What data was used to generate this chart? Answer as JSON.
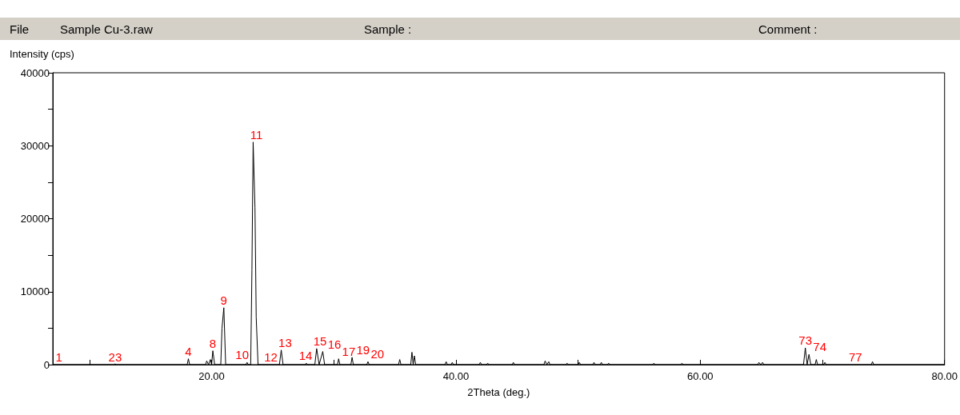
{
  "chart_data": {
    "type": "line",
    "xlabel": "2Theta (deg.)",
    "ylabel": "Intensity (cps)",
    "annotations": [
      "File",
      "Sample Cu-3.raw",
      "Sample :",
      "Comment :",
      {
        "text": "1",
        "x": 7.5,
        "y": 0
      },
      {
        "text": "23",
        "x": 12.1,
        "y": 0
      },
      {
        "text": "4",
        "x": 18.1,
        "y": 800
      },
      {
        "text": "8",
        "x": 20.1,
        "y": 1900
      },
      {
        "text": "9",
        "x": 21.0,
        "y": 7800
      },
      {
        "text": "10",
        "x": 22.5,
        "y": 300
      },
      {
        "text": "11",
        "x": 23.4,
        "y": 30500
      },
      {
        "text": "12",
        "x": 23.9,
        "y": 0
      },
      {
        "text": "13",
        "x": 25.7,
        "y": 2000
      },
      {
        "text": "14",
        "x": 27.7,
        "y": 200
      },
      {
        "text": "15",
        "x": 28.6,
        "y": 2200
      },
      {
        "text": "16",
        "x": 29.1,
        "y": 1800
      },
      {
        "text": "17",
        "x": 30.3,
        "y": 800
      },
      {
        "text": "19",
        "x": 31.6,
        "y": 1000
      },
      {
        "text": "20",
        "x": 32.8,
        "y": 400
      },
      {
        "text": "73",
        "x": 68.6,
        "y": 2300
      },
      {
        "text": "74",
        "x": 68.95,
        "y": 1400
      },
      {
        "text": "77",
        "x": 72.7,
        "y": 0
      }
    ],
    "series": [
      {
        "color": "#000000",
        "x": [
          7,
          12.0,
          12.1,
          12.2,
          18.0,
          18.1,
          18.2,
          19.5,
          19.6,
          19.75,
          19.9,
          20.0,
          20.1,
          20.25,
          20.75,
          20.85,
          21.0,
          21.15,
          22.8,
          22.9,
          23.0,
          23.2,
          23.3,
          23.4,
          23.55,
          23.65,
          23.8,
          25.55,
          25.7,
          25.85,
          27.65,
          27.75,
          27.85,
          28.45,
          28.6,
          28.8,
          29.1,
          29.25,
          30.3,
          30.4,
          30.5,
          31.4,
          31.5,
          31.6,
          32.7,
          32.8,
          32.9,
          35.3,
          35.4,
          35.5,
          36.3,
          36.4,
          36.5,
          36.6,
          36.7,
          39.1,
          39.2,
          39.3,
          39.6,
          39.7,
          39.8,
          41.9,
          42.0,
          42.1,
          42.5,
          42.6,
          42.7,
          44.6,
          44.7,
          44.8,
          47.2,
          47.3,
          47.45,
          47.6,
          47.7,
          49.0,
          49.1,
          49.2,
          50.0,
          50.1,
          50.2,
          51.2,
          51.3,
          51.4,
          51.8,
          51.9,
          52.0,
          52.4,
          52.5,
          52.6,
          56.1,
          56.2,
          56.3,
          58.4,
          58.5,
          58.6,
          64.7,
          64.8,
          64.95,
          65.1,
          65.2,
          68.45,
          68.6,
          68.75,
          68.9,
          69.05,
          69.4,
          69.5,
          69.6,
          70.1,
          70.2,
          70.3,
          74.0,
          74.1,
          74.2,
          80
        ],
        "values": [
          0,
          0,
          100,
          0,
          0,
          800,
          0,
          0,
          500,
          0,
          700,
          0,
          1900,
          0,
          0,
          5000,
          7800,
          0,
          0,
          300,
          0,
          0,
          13000,
          30500,
          21500,
          6500,
          0,
          0,
          2000,
          0,
          0,
          200,
          0,
          0,
          2200,
          0,
          1800,
          0,
          0,
          800,
          0,
          0,
          1000,
          0,
          0,
          400,
          0,
          0,
          700,
          0,
          0,
          1700,
          0,
          1200,
          0,
          0,
          400,
          0,
          0,
          300,
          0,
          0,
          300,
          0,
          0,
          200,
          0,
          0,
          300,
          0,
          0,
          500,
          0,
          400,
          0,
          0,
          200,
          0,
          0,
          300,
          0,
          0,
          300,
          0,
          0,
          300,
          0,
          0,
          200,
          0,
          0,
          200,
          0,
          0,
          200,
          0,
          0,
          300,
          0,
          300,
          0,
          0,
          2300,
          0,
          1400,
          0,
          0,
          700,
          0,
          0,
          300,
          0,
          0,
          400,
          0,
          0
        ]
      }
    ],
    "xlim": [
      7,
      80
    ],
    "xticks": [
      {
        "value": 10,
        "label": null
      },
      {
        "value": 20,
        "label": "20.00"
      },
      {
        "value": 30,
        "label": null
      },
      {
        "value": 40,
        "label": "40.00"
      },
      {
        "value": 50,
        "label": null
      },
      {
        "value": 60,
        "label": "60.00"
      },
      {
        "value": 70,
        "label": null
      },
      {
        "value": 80,
        "label": "80.00"
      }
    ],
    "ylim": [
      0,
      40000
    ],
    "yticks": [
      0,
      {
        "value": 5000,
        "label": null
      },
      10000,
      {
        "value": 15000,
        "label": null
      },
      20000,
      {
        "value": 25000,
        "label": null
      },
      30000,
      {
        "value": 35000,
        "label": null
      },
      40000
    ],
    "grid": false,
    "marker": "none",
    "line_style": "solid"
  }
}
